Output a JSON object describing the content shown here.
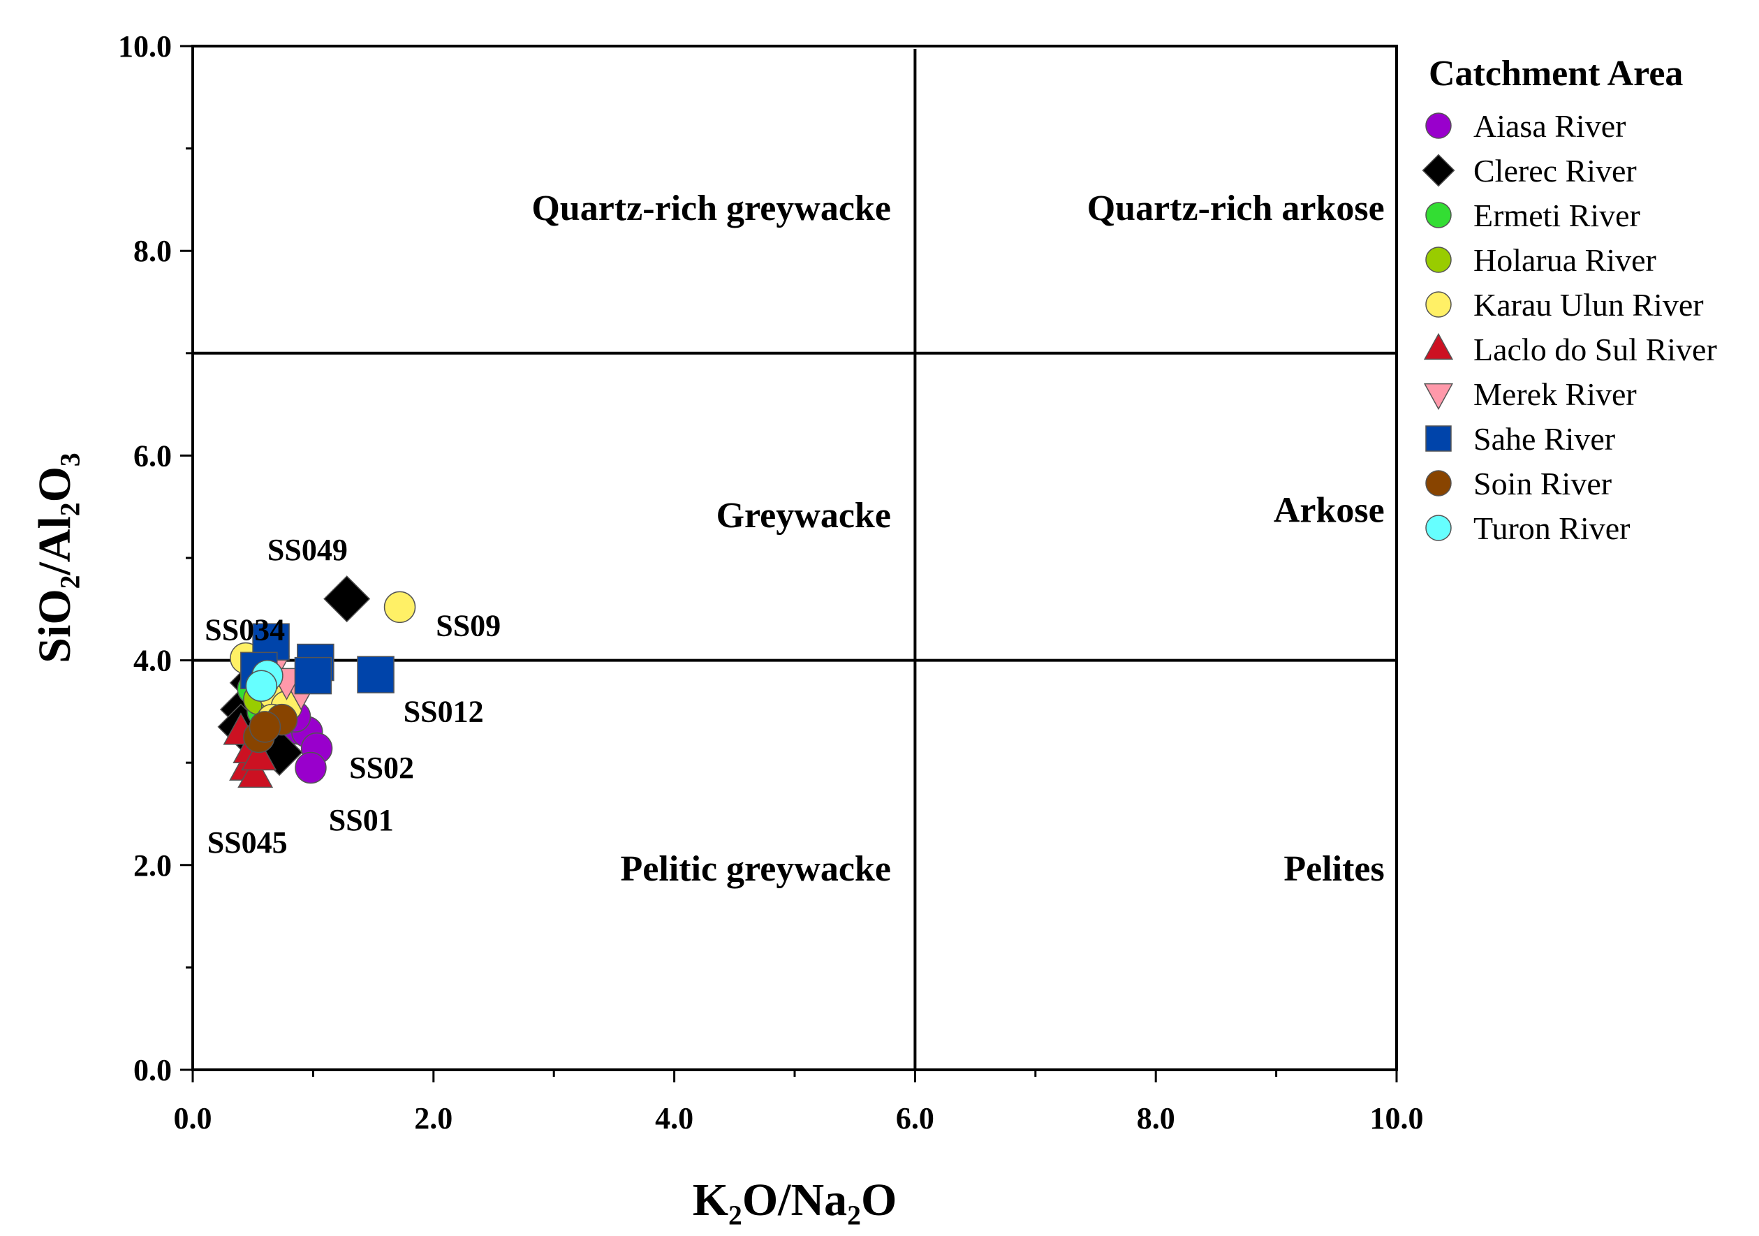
{
  "chart_data": {
    "type": "scatter",
    "xlabel": "K₂O/Na₂O",
    "ylabel": "SiO₂/Al₂O₃",
    "xlim": [
      0,
      10
    ],
    "ylim": [
      0,
      10
    ],
    "x_ticks": [
      "0.0",
      "2.0",
      "4.0",
      "6.0",
      "8.0",
      "10.0"
    ],
    "y_ticks": [
      "0.0",
      "2.0",
      "4.0",
      "6.0",
      "8.0",
      "10.0"
    ],
    "grid": false,
    "legend_title": "Catchment Area",
    "legend_position": "right",
    "divider_lines": {
      "vertical_x": 6.0,
      "horizontal_y": [
        7.0,
        4.0
      ]
    },
    "regions": [
      {
        "name": "Quartz-rich greywacke",
        "x": 5.8,
        "y": 8.3,
        "anchor": "end"
      },
      {
        "name": "Quartz-rich arkose",
        "x": 9.9,
        "y": 8.3,
        "anchor": "end"
      },
      {
        "name": "Greywacke",
        "x": 5.8,
        "y": 5.3,
        "anchor": "end"
      },
      {
        "name": "Arkose",
        "x": 9.9,
        "y": 5.35,
        "anchor": "end"
      },
      {
        "name": "Pelitic greywacke",
        "x": 5.8,
        "y": 1.85,
        "anchor": "end"
      },
      {
        "name": "Pelites",
        "x": 9.9,
        "y": 1.85,
        "anchor": "end"
      }
    ],
    "series": [
      {
        "name": "Aiasa River",
        "marker": "circle",
        "color": "#9900CC",
        "points": [
          [
            0.8,
            3.68
          ],
          [
            0.88,
            3.33
          ],
          [
            0.95,
            3.3
          ],
          [
            1.03,
            3.14
          ],
          [
            0.98,
            2.95
          ],
          [
            0.85,
            3.45
          ]
        ]
      },
      {
        "name": "Clerec River",
        "marker": "diamond",
        "color": "#000000",
        "points": [
          [
            1.28,
            4.6
          ],
          [
            0.72,
            3.1
          ],
          [
            0.42,
            3.52
          ],
          [
            0.5,
            3.78
          ],
          [
            0.4,
            3.35
          ]
        ]
      },
      {
        "name": "Ermeti River",
        "marker": "circle",
        "color": "#33DD33",
        "points": [
          [
            0.58,
            3.5
          ],
          [
            0.62,
            3.58
          ],
          [
            0.5,
            3.72
          ]
        ]
      },
      {
        "name": "Holarua River",
        "marker": "circle",
        "color": "#99CC00",
        "points": [
          [
            0.55,
            3.62
          ],
          [
            0.7,
            3.55
          ]
        ]
      },
      {
        "name": "Karau Ulun River",
        "marker": "circle",
        "color": "#FFF066",
        "points": [
          [
            1.72,
            4.52
          ],
          [
            0.44,
            4.02
          ],
          [
            0.68,
            3.66
          ],
          [
            0.78,
            3.55
          ],
          [
            0.66,
            3.42
          ]
        ]
      },
      {
        "name": "Laclo do Sul River",
        "marker": "triangle-up",
        "color": "#CC1122",
        "points": [
          [
            0.45,
            2.95
          ],
          [
            0.52,
            2.88
          ],
          [
            0.4,
            3.3
          ],
          [
            0.48,
            3.12
          ],
          [
            0.55,
            3.05
          ]
        ]
      },
      {
        "name": "Merek River",
        "marker": "triangle-down",
        "color": "#FF99AA",
        "points": [
          [
            0.9,
            3.7
          ],
          [
            0.66,
            3.92
          ],
          [
            0.78,
            3.8
          ]
        ]
      },
      {
        "name": "Sahe River",
        "marker": "square",
        "color": "#0044AA",
        "points": [
          [
            0.65,
            4.18
          ],
          [
            1.02,
            3.98
          ],
          [
            1.52,
            3.86
          ],
          [
            1.0,
            3.85
          ],
          [
            0.55,
            3.9
          ]
        ]
      },
      {
        "name": "Soin River",
        "marker": "circle",
        "color": "#884400",
        "points": [
          [
            0.74,
            3.42
          ],
          [
            0.55,
            3.25
          ],
          [
            0.6,
            3.35
          ]
        ]
      },
      {
        "name": "Turon River",
        "marker": "circle",
        "color": "#66FFFF",
        "points": [
          [
            0.62,
            3.85
          ],
          [
            0.57,
            3.75
          ]
        ]
      }
    ],
    "annotations": [
      {
        "text": "SS049",
        "x": 0.62,
        "y": 4.98
      },
      {
        "text": "SS034",
        "x": 0.1,
        "y": 4.2
      },
      {
        "text": "SS09",
        "x": 2.02,
        "y": 4.24
      },
      {
        "text": "SS012",
        "x": 1.75,
        "y": 3.4
      },
      {
        "text": "SS02",
        "x": 1.3,
        "y": 2.85
      },
      {
        "text": "SS01",
        "x": 1.13,
        "y": 2.34
      },
      {
        "text": "SS045",
        "x": 0.12,
        "y": 2.12
      }
    ]
  }
}
